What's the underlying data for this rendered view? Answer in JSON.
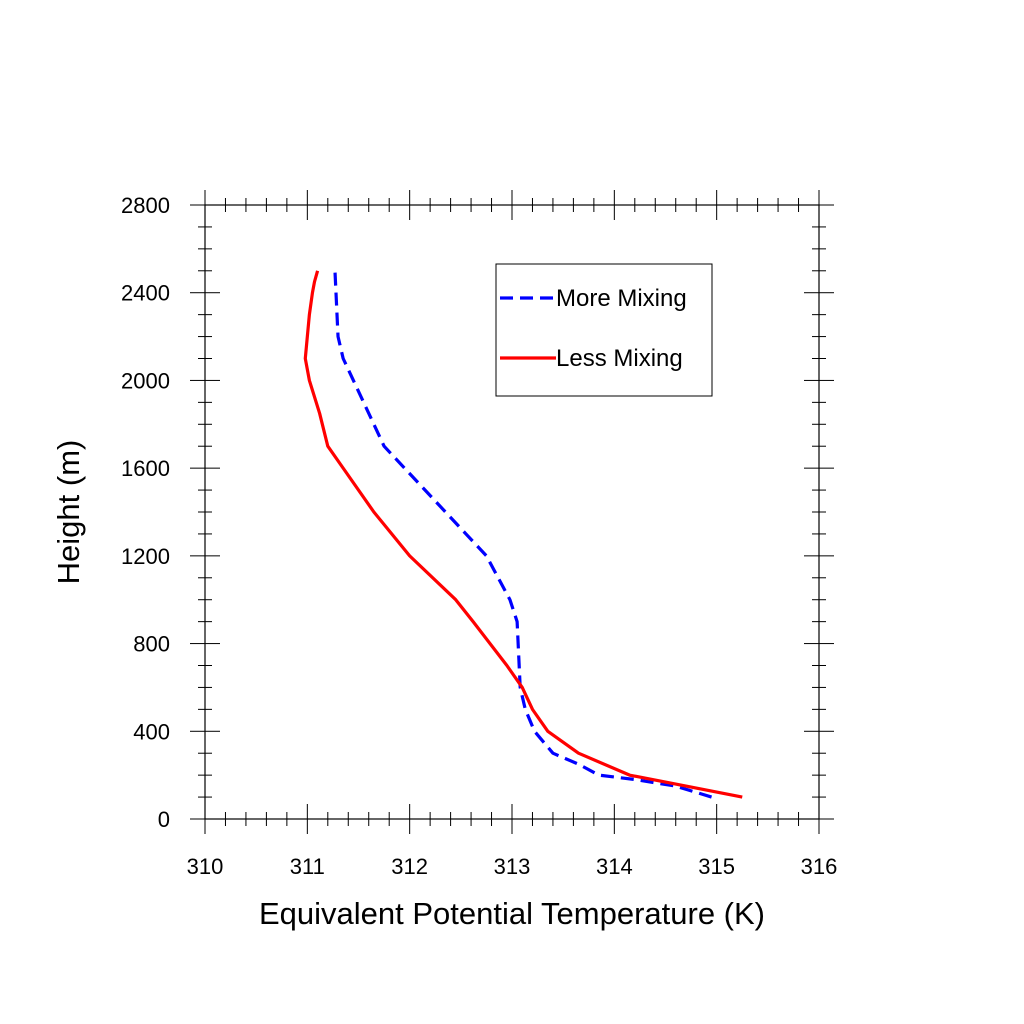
{
  "chart_data": {
    "type": "line",
    "title": "",
    "xlabel": "Equivalent Potential Temperature (K)",
    "ylabel": "Height (m)",
    "xlim": [
      310,
      316
    ],
    "ylim": [
      0,
      2800
    ],
    "xticks": [
      310,
      311,
      312,
      313,
      314,
      315,
      316
    ],
    "yticks": [
      0,
      400,
      800,
      1200,
      1600,
      2000,
      2400,
      2800
    ],
    "grid": false,
    "legend_position": "top-right",
    "series": [
      {
        "name": "More Mixing",
        "color": "#0000ff",
        "dash": "dashed",
        "points": [
          [
            314.95,
            100
          ],
          [
            314.6,
            150
          ],
          [
            314.2,
            180
          ],
          [
            313.85,
            200
          ],
          [
            313.65,
            250
          ],
          [
            313.4,
            300
          ],
          [
            313.22,
            400
          ],
          [
            313.13,
            500
          ],
          [
            313.08,
            600
          ],
          [
            313.06,
            800
          ],
          [
            313.05,
            900
          ],
          [
            312.98,
            1000
          ],
          [
            312.75,
            1200
          ],
          [
            312.55,
            1300
          ],
          [
            312.35,
            1400
          ],
          [
            311.75,
            1700
          ],
          [
            311.55,
            1900
          ],
          [
            311.35,
            2100
          ],
          [
            311.3,
            2200
          ],
          [
            311.28,
            2400
          ],
          [
            311.27,
            2500
          ]
        ]
      },
      {
        "name": "Less Mixing",
        "color": "#ff0000",
        "dash": "solid",
        "points": [
          [
            315.25,
            100
          ],
          [
            314.7,
            150
          ],
          [
            314.15,
            200
          ],
          [
            313.65,
            300
          ],
          [
            313.35,
            400
          ],
          [
            313.2,
            500
          ],
          [
            313.1,
            600
          ],
          [
            312.95,
            700
          ],
          [
            312.62,
            900
          ],
          [
            312.45,
            1000
          ],
          [
            312.0,
            1200
          ],
          [
            311.65,
            1400
          ],
          [
            311.35,
            1600
          ],
          [
            311.2,
            1700
          ],
          [
            311.12,
            1850
          ],
          [
            311.02,
            2000
          ],
          [
            310.98,
            2100
          ],
          [
            311.02,
            2300
          ],
          [
            311.05,
            2400
          ],
          [
            311.07,
            2450
          ],
          [
            311.1,
            2500
          ]
        ]
      }
    ]
  }
}
